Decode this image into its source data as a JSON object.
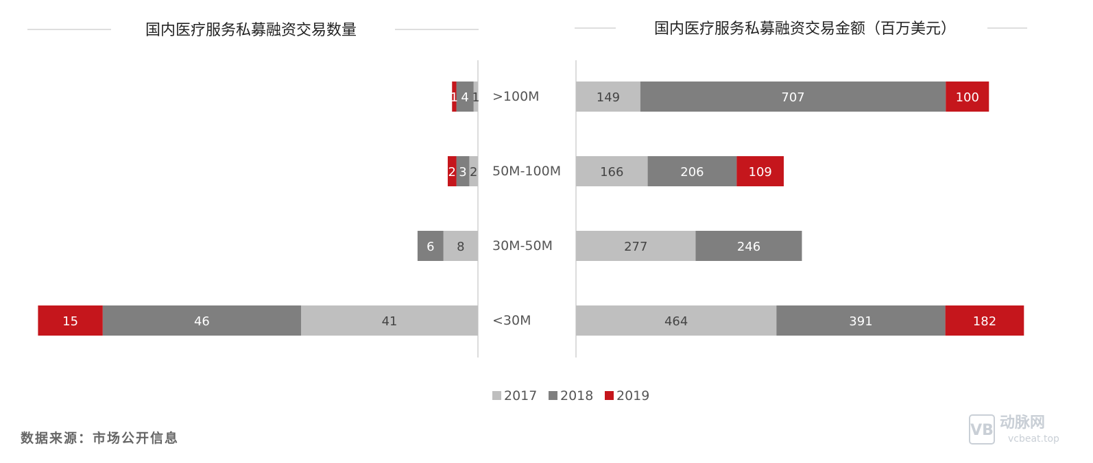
{
  "left_title": "国内医疗服务私募融资交易数量",
  "right_title": "国内医疗服务私募融资交易金额（百万美元）",
  "source": "数据来源：市场公开信息",
  "watermark": {
    "brand": "动脉网",
    "url": "vcbeat.top",
    "logo": "VB"
  },
  "colors": {
    "2017": "#bfbfbf",
    "2018": "#7f7f7f",
    "2019": "#c5161c"
  },
  "chart_data": [
    {
      "type": "bar",
      "orientation": "horizontal-stacked",
      "title": "国内医疗服务私募融资交易数量",
      "categories": [
        ">100M",
        "50M-100M",
        "30M-50M",
        "<30M"
      ],
      "series": [
        {
          "name": "2017",
          "values": [
            1,
            2,
            8,
            41
          ]
        },
        {
          "name": "2018",
          "values": [
            4,
            3,
            6,
            46
          ]
        },
        {
          "name": "2019",
          "values": [
            1,
            2,
            0,
            15
          ]
        }
      ],
      "xlim": [
        0,
        102
      ],
      "direction": "right-to-left",
      "grid": false,
      "legend": "bottom"
    },
    {
      "type": "bar",
      "orientation": "horizontal-stacked",
      "title": "国内医疗服务私募融资交易金额（百万美元）",
      "categories": [
        ">100M",
        "50M-100M",
        "30M-50M",
        "<30M"
      ],
      "series": [
        {
          "name": "2017",
          "values": [
            149,
            166,
            277,
            464
          ]
        },
        {
          "name": "2018",
          "values": [
            707,
            206,
            246,
            391
          ]
        },
        {
          "name": "2019",
          "values": [
            100,
            109,
            0,
            182
          ]
        }
      ],
      "xlim": [
        0,
        1037
      ],
      "direction": "left-to-right",
      "grid": false,
      "legend": "bottom"
    }
  ]
}
